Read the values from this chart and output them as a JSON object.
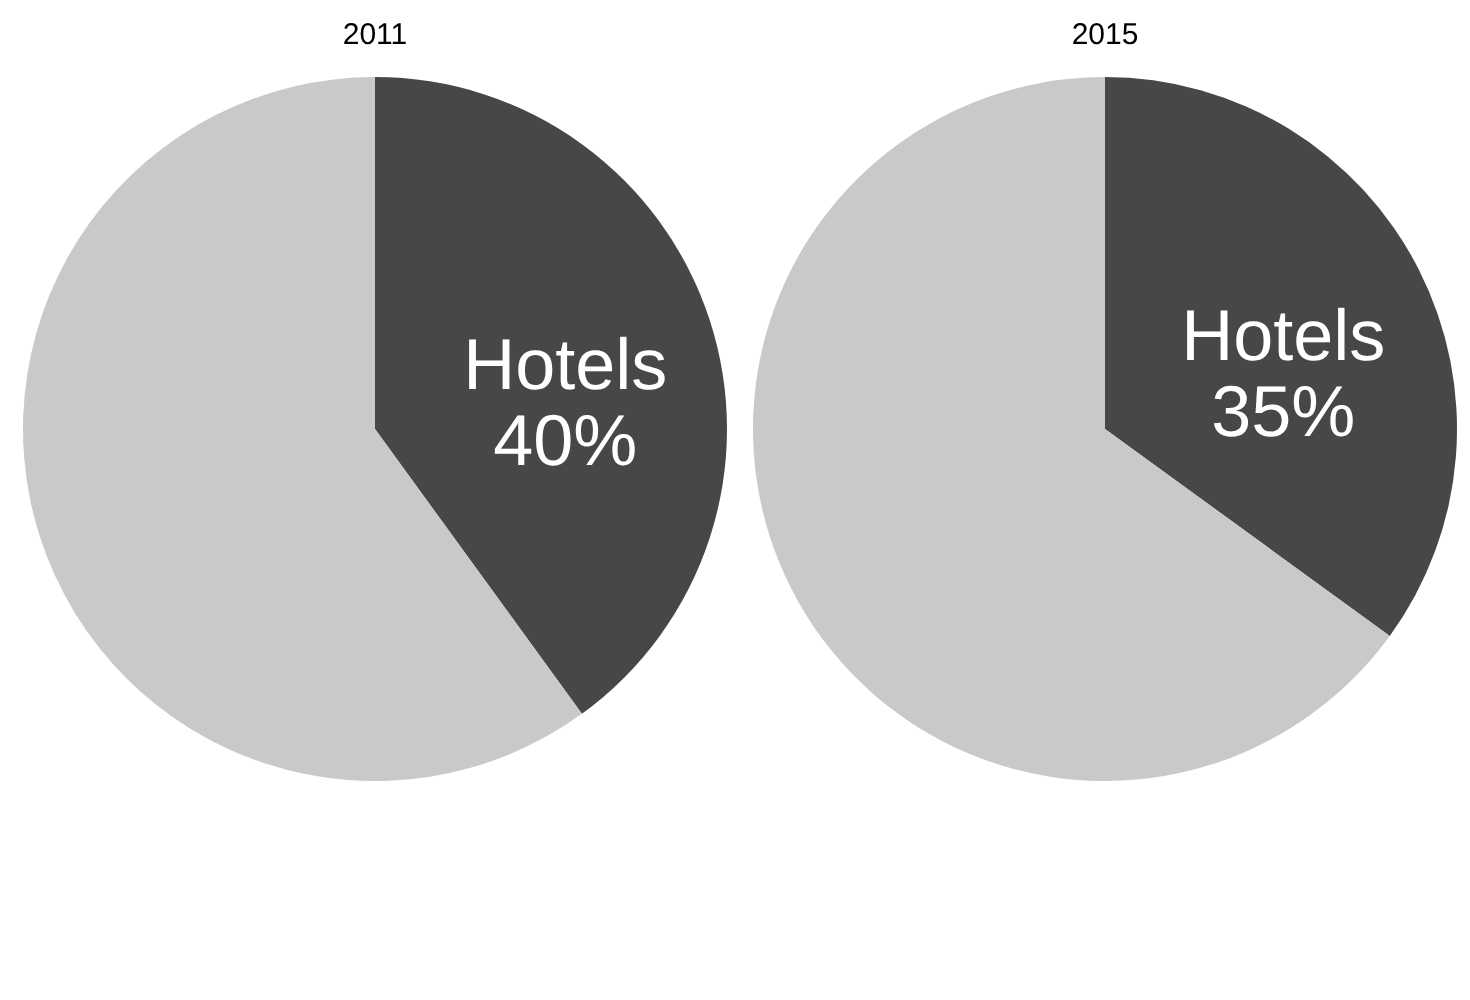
{
  "chart_data": [
    {
      "type": "pie",
      "title": "2011",
      "categories": [
        "Hotels",
        null
      ],
      "values": [
        40,
        60
      ],
      "colors": [
        "#474747",
        "#c9c9c9"
      ],
      "value_labels": [
        "40%",
        null
      ]
    },
    {
      "type": "pie",
      "title": "2015",
      "categories": [
        "Hotels",
        null
      ],
      "values": [
        35,
        65
      ],
      "colors": [
        "#474747",
        "#c9c9c9"
      ],
      "value_labels": [
        "35%",
        null
      ]
    }
  ]
}
